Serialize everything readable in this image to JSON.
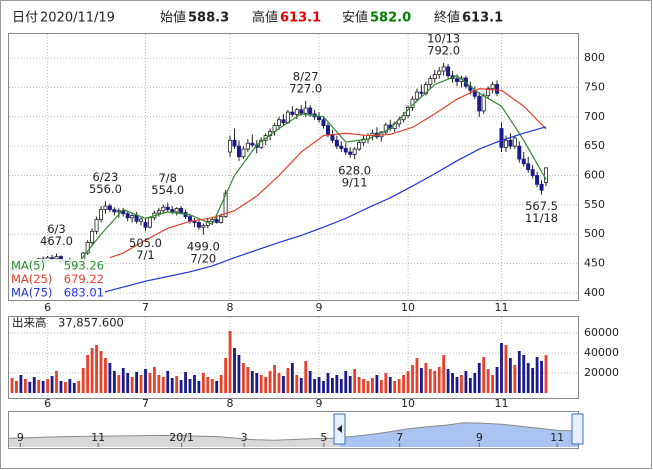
{
  "header": {
    "date_label": "日付",
    "date": "2020/11/19",
    "fields": [
      {
        "label": "始値",
        "value": "588.3",
        "color": "#222222"
      },
      {
        "label": "高値",
        "value": "613.1",
        "color": "#e60000"
      },
      {
        "label": "安値",
        "value": "582.0",
        "color": "#008000"
      },
      {
        "label": "終値",
        "value": "613.1",
        "color": "#222222"
      }
    ]
  },
  "chart_data": [
    {
      "type": "candlestick",
      "ylim": [
        388,
        841
      ],
      "yticks": [
        400,
        450,
        500,
        550,
        600,
        650,
        700,
        750,
        800
      ],
      "grid": true,
      "xticks": [
        {
          "value": 8,
          "label": "6"
        },
        {
          "value": 30,
          "label": "7"
        },
        {
          "value": 49,
          "label": "8"
        },
        {
          "value": 69,
          "label": "9"
        },
        {
          "value": 89,
          "label": "10"
        },
        {
          "value": 110,
          "label": "11"
        }
      ],
      "up_color": "#ffffff",
      "down_color": "#1a1a8c",
      "ohlc": [
        [
          438,
          445,
          432,
          442
        ],
        [
          442,
          450,
          438,
          446
        ],
        [
          446,
          452,
          440,
          444
        ],
        [
          444,
          455,
          441,
          452
        ],
        [
          452,
          458,
          446,
          450
        ],
        [
          450,
          456,
          444,
          447
        ],
        [
          447,
          460,
          445,
          458
        ],
        [
          458,
          462,
          450,
          455
        ],
        [
          455,
          463,
          452,
          460
        ],
        [
          460,
          465,
          455,
          458
        ],
        [
          458,
          467,
          454,
          462
        ],
        [
          462,
          464,
          450,
          452
        ],
        [
          452,
          458,
          446,
          456
        ],
        [
          456,
          460,
          448,
          450
        ],
        [
          450,
          455,
          440,
          445
        ],
        [
          445,
          452,
          438,
          449
        ],
        [
          449,
          470,
          447,
          468
        ],
        [
          468,
          490,
          465,
          486
        ],
        [
          486,
          510,
          482,
          505
        ],
        [
          505,
          530,
          500,
          525
        ],
        [
          525,
          548,
          520,
          542
        ],
        [
          542,
          556,
          535,
          548
        ],
        [
          548,
          552,
          538,
          542
        ],
        [
          542,
          546,
          532,
          538
        ],
        [
          538,
          544,
          528,
          540
        ],
        [
          540,
          545,
          530,
          535
        ],
        [
          535,
          540,
          522,
          528
        ],
        [
          528,
          536,
          520,
          532
        ],
        [
          532,
          538,
          518,
          522
        ],
        [
          522,
          530,
          515,
          526
        ],
        [
          520,
          526,
          505,
          512
        ],
        [
          512,
          530,
          510,
          528
        ],
        [
          528,
          540,
          524,
          536
        ],
        [
          536,
          545,
          530,
          540
        ],
        [
          540,
          550,
          535,
          546
        ],
        [
          546,
          554,
          538,
          542
        ],
        [
          542,
          548,
          534,
          538
        ],
        [
          538,
          546,
          532,
          544
        ],
        [
          544,
          548,
          535,
          537
        ],
        [
          537,
          542,
          526,
          530
        ],
        [
          530,
          535,
          518,
          522
        ],
        [
          522,
          528,
          512,
          520
        ],
        [
          520,
          524,
          508,
          512
        ],
        [
          512,
          518,
          499,
          515
        ],
        [
          515,
          526,
          510,
          522
        ],
        [
          522,
          530,
          516,
          525
        ],
        [
          525,
          532,
          518,
          520
        ],
        [
          520,
          535,
          518,
          530
        ],
        [
          530,
          575,
          528,
          570
        ],
        [
          640,
          668,
          632,
          660
        ],
        [
          660,
          680,
          645,
          650
        ],
        [
          650,
          660,
          625,
          632
        ],
        [
          632,
          650,
          628,
          645
        ],
        [
          645,
          662,
          640,
          655
        ],
        [
          655,
          670,
          648,
          652
        ],
        [
          652,
          660,
          638,
          648
        ],
        [
          648,
          665,
          645,
          660
        ],
        [
          660,
          672,
          652,
          668
        ],
        [
          668,
          680,
          660,
          675
        ],
        [
          675,
          690,
          668,
          685
        ],
        [
          685,
          700,
          678,
          695
        ],
        [
          695,
          705,
          685,
          690
        ],
        [
          690,
          712,
          688,
          708
        ],
        [
          708,
          718,
          700,
          704
        ],
        [
          704,
          715,
          696,
          712
        ],
        [
          712,
          720,
          702,
          706
        ],
        [
          706,
          727,
          700,
          715
        ],
        [
          715,
          720,
          700,
          705
        ],
        [
          705,
          712,
          695,
          700
        ],
        [
          700,
          708,
          690,
          695
        ],
        [
          695,
          700,
          680,
          685
        ],
        [
          685,
          690,
          665,
          670
        ],
        [
          670,
          678,
          655,
          660
        ],
        [
          660,
          668,
          645,
          650
        ],
        [
          650,
          658,
          640,
          646
        ],
        [
          646,
          655,
          635,
          640
        ],
        [
          640,
          648,
          630,
          636
        ],
        [
          636,
          648,
          628,
          645
        ],
        [
          645,
          660,
          642,
          656
        ],
        [
          656,
          668,
          650,
          662
        ],
        [
          662,
          672,
          655,
          668
        ],
        [
          668,
          678,
          660,
          672
        ],
        [
          672,
          682,
          662,
          666
        ],
        [
          666,
          676,
          658,
          674
        ],
        [
          674,
          690,
          670,
          686
        ],
        [
          686,
          695,
          676,
          680
        ],
        [
          680,
          692,
          674,
          688
        ],
        [
          688,
          700,
          682,
          695
        ],
        [
          695,
          708,
          690,
          702
        ],
        [
          702,
          720,
          698,
          716
        ],
        [
          716,
          735,
          710,
          730
        ],
        [
          730,
          748,
          725,
          742
        ],
        [
          742,
          755,
          735,
          740
        ],
        [
          740,
          760,
          736,
          755
        ],
        [
          755,
          770,
          748,
          765
        ],
        [
          765,
          780,
          758,
          772
        ],
        [
          772,
          785,
          765,
          778
        ],
        [
          778,
          792,
          770,
          785
        ],
        [
          785,
          790,
          765,
          770
        ],
        [
          770,
          778,
          758,
          765
        ],
        [
          765,
          772,
          752,
          760
        ],
        [
          760,
          770,
          750,
          766
        ],
        [
          766,
          770,
          748,
          752
        ],
        [
          752,
          760,
          738,
          745
        ],
        [
          745,
          752,
          730,
          735
        ],
        [
          735,
          742,
          700,
          710
        ],
        [
          710,
          740,
          705,
          736
        ],
        [
          736,
          752,
          730,
          748
        ],
        [
          748,
          760,
          740,
          755
        ],
        [
          755,
          762,
          735,
          740
        ],
        [
          680,
          690,
          640,
          648
        ],
        [
          648,
          668,
          640,
          660
        ],
        [
          660,
          672,
          645,
          650
        ],
        [
          650,
          668,
          645,
          664
        ],
        [
          650,
          658,
          622,
          628
        ],
        [
          628,
          640,
          615,
          620
        ],
        [
          620,
          632,
          605,
          610
        ],
        [
          610,
          618,
          595,
          600
        ],
        [
          600,
          606,
          580,
          585
        ],
        [
          585,
          592,
          567.5,
          575
        ],
        [
          588.3,
          613.1,
          582.0,
          613.1
        ]
      ],
      "ma_lines": [
        {
          "name": "MA(5)",
          "color": "#2e8b2e",
          "x": [
            4,
            10,
            15,
            20,
            25,
            30,
            35,
            40,
            45,
            50,
            55,
            60,
            65,
            70,
            75,
            80,
            85,
            90,
            95,
            100,
            105,
            110,
            115,
            120
          ],
          "values": [
            447,
            456,
            452,
            500,
            542,
            527,
            538,
            533,
            517,
            600,
            652,
            680,
            705,
            700,
            657,
            662,
            680,
            720,
            755,
            770,
            740,
            718,
            660,
            593.26
          ]
        },
        {
          "name": "MA(25)",
          "color": "#e8402a",
          "x": [
            22,
            25,
            30,
            35,
            40,
            45,
            50,
            55,
            60,
            65,
            70,
            75,
            80,
            85,
            90,
            95,
            100,
            105,
            110,
            115,
            120
          ],
          "values": [
            460,
            468,
            490,
            510,
            522,
            528,
            540,
            565,
            600,
            640,
            668,
            672,
            668,
            670,
            682,
            705,
            730,
            748,
            745,
            718,
            679.22
          ]
        },
        {
          "name": "MA(75)",
          "color": "#2233dd",
          "x": [
            20,
            25,
            30,
            35,
            40,
            45,
            50,
            55,
            60,
            65,
            70,
            75,
            80,
            85,
            90,
            95,
            100,
            105,
            110,
            115,
            120
          ],
          "values": [
            400,
            410,
            420,
            428,
            436,
            446,
            460,
            473,
            486,
            498,
            512,
            527,
            545,
            562,
            582,
            603,
            625,
            645,
            660,
            672,
            683.01
          ]
        }
      ],
      "annotations": [
        {
          "date": "6/3",
          "value": 467,
          "label": "467.0",
          "day": 10,
          "side": "high"
        },
        {
          "date": "6/23",
          "value": 556,
          "label": "556.0",
          "day": 21,
          "side": "high"
        },
        {
          "date": "7/8",
          "value": 554,
          "label": "554.0",
          "day": 35,
          "side": "high"
        },
        {
          "date": "7/1",
          "value": 505,
          "label": "505.0",
          "day": 30,
          "side": "low"
        },
        {
          "date": "7/20",
          "value": 499,
          "label": "499.0",
          "day": 43,
          "side": "low"
        },
        {
          "date": "8/27",
          "value": 727,
          "label": "727.0",
          "day": 66,
          "side": "high"
        },
        {
          "date": "9/11",
          "value": 628,
          "label": "628.0",
          "day": 77,
          "side": "low"
        },
        {
          "date": "10/13",
          "value": 792,
          "label": "792.0",
          "day": 97,
          "side": "high"
        },
        {
          "date": "11/18",
          "value": 567.5,
          "label": "567.5",
          "day": 119,
          "side": "low"
        }
      ]
    },
    {
      "type": "bar",
      "title": "出来高",
      "current": "37,857.600",
      "ylim": [
        0,
        75000
      ],
      "yticks": [
        20000,
        40000,
        60000
      ],
      "grid": true,
      "up_color": "#e8402a",
      "down_color": "#1a1a8c",
      "values": [
        15000,
        12000,
        18000,
        14000,
        11000,
        16000,
        13000,
        12000,
        14000,
        17000,
        22000,
        12000,
        11000,
        14000,
        10000,
        12000,
        25000,
        38000,
        45000,
        48000,
        42000,
        35000,
        30000,
        22000,
        18000,
        25000,
        20000,
        16000,
        21000,
        18000,
        24000,
        20000,
        26000,
        18000,
        16000,
        22000,
        15000,
        17000,
        13000,
        21000,
        14000,
        18000,
        12000,
        20000,
        16000,
        14000,
        12000,
        18000,
        35000,
        62000,
        45000,
        38000,
        30000,
        26000,
        22000,
        20000,
        18000,
        16000,
        22000,
        28000,
        20000,
        17000,
        25000,
        30000,
        18000,
        15000,
        32000,
        22000,
        14000,
        16000,
        12000,
        20000,
        15000,
        18000,
        14000,
        22000,
        17000,
        24000,
        16000,
        14000,
        12000,
        15000,
        18000,
        13000,
        20000,
        16000,
        12000,
        14000,
        18000,
        22000,
        28000,
        35000,
        25000,
        30000,
        24000,
        22000,
        26000,
        38000,
        24000,
        20000,
        16000,
        18000,
        22000,
        15000,
        20000,
        30000,
        36000,
        24000,
        18000,
        26000,
        50000,
        48000,
        35000,
        28000,
        42000,
        38000,
        30000,
        25000,
        36000,
        32000,
        37857.6
      ]
    },
    {
      "type": "area",
      "ylim": [
        300,
        900
      ],
      "color": "#8a8a8a",
      "fill": "#d8d8d8",
      "selected_fill": "#a9c4f0",
      "xticks": [
        {
          "value": 0.6,
          "label": "9"
        },
        {
          "value": 4.7,
          "label": "11"
        },
        {
          "value": 9.1,
          "label": "20/1"
        },
        {
          "value": 12.4,
          "label": "3"
        },
        {
          "value": 16.6,
          "label": "5"
        },
        {
          "value": 20.6,
          "label": "7"
        },
        {
          "value": 24.8,
          "label": "9"
        },
        {
          "value": 28.9,
          "label": "11"
        }
      ],
      "values": [
        470,
        480,
        490,
        500,
        505,
        510,
        515,
        520,
        525,
        520,
        510,
        500,
        470,
        440,
        430,
        445,
        460,
        470,
        500,
        540,
        590,
        650,
        690,
        720,
        770,
        760,
        740,
        700,
        660,
        620,
        613
      ]
    }
  ]
}
